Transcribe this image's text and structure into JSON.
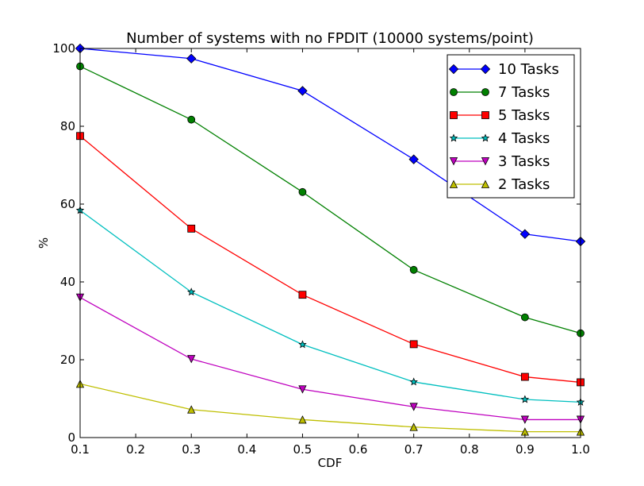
{
  "chart_data": {
    "type": "line",
    "title": "Number of systems with no FPDIT (10000 systems/point)",
    "xlabel": "CDF",
    "ylabel": "%",
    "xlim": [
      0.1,
      1.0
    ],
    "ylim": [
      0,
      100
    ],
    "xticks": [
      0.1,
      0.2,
      0.3,
      0.4,
      0.5,
      0.6,
      0.7,
      0.8,
      0.9,
      1.0
    ],
    "xtick_labels": [
      "0.1",
      "0.2",
      "0.3",
      "0.4",
      "0.5",
      "0.6",
      "0.7",
      "0.8",
      "0.9",
      "1.0"
    ],
    "yticks": [
      0,
      20,
      40,
      60,
      80,
      100
    ],
    "ytick_labels": [
      "0",
      "20",
      "40",
      "60",
      "80",
      "100"
    ],
    "grid": false,
    "legend_position": "top-right",
    "x": [
      0.1,
      0.3,
      0.5,
      0.7,
      0.9,
      1.0
    ],
    "series": [
      {
        "name": "10 Tasks",
        "color": "#0000ff",
        "marker": "diamond",
        "values": [
          100,
          97.4,
          89.1,
          71.5,
          52.3,
          50.4
        ]
      },
      {
        "name": "7 Tasks",
        "color": "#008000",
        "marker": "circle",
        "values": [
          95.4,
          81.7,
          63.1,
          43.1,
          30.9,
          26.8
        ]
      },
      {
        "name": "5 Tasks",
        "color": "#ff0000",
        "marker": "square",
        "values": [
          77.5,
          53.7,
          36.7,
          24.0,
          15.6,
          14.2
        ]
      },
      {
        "name": "4 Tasks",
        "color": "#00bfbf",
        "marker": "star",
        "values": [
          58.4,
          37.4,
          23.9,
          14.3,
          9.8,
          9.1
        ]
      },
      {
        "name": "3 Tasks",
        "color": "#bf00bf",
        "marker": "triangle-down",
        "values": [
          36.0,
          20.2,
          12.4,
          7.9,
          4.6,
          4.6
        ]
      },
      {
        "name": "2 Tasks",
        "color": "#bfbf00",
        "marker": "triangle-up",
        "values": [
          13.8,
          7.2,
          4.6,
          2.7,
          1.5,
          1.5
        ]
      }
    ]
  }
}
